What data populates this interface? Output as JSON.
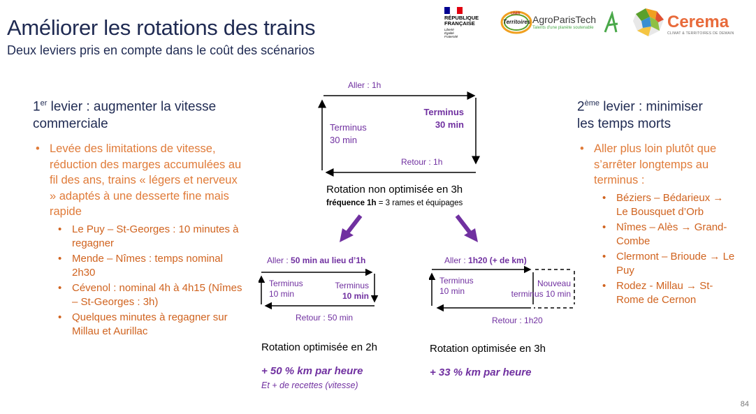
{
  "title": "Améliorer les rotations des trains",
  "subtitle": "Deux leviers pris en compte dans le coût des scénarios",
  "logos": {
    "rf_line1": "RÉPUBLIQUE",
    "rf_line2": "FRANÇAISE",
    "rf_motto1": "Liberté",
    "rf_motto2": "Égalité",
    "rf_motto3": "Fraternité",
    "umr_top": "UMR",
    "umr_name": "Territoires",
    "agro_name": "AgroParisTech",
    "agro_tagline": "Talents d'une planète soutenable",
    "cerema_name": "Cerema",
    "cerema_tagline": "CLIMAT & TERRITOIRES DE DEMAIN"
  },
  "lever1": {
    "head_num": "1",
    "head_sup": "er",
    "head_rest": " levier : augmenter la vitesse",
    "head_line2": "commerciale",
    "bullet": "Levée des limitations de vitesse, réduction des marges accumulées au fil des ans, trains « légers et nerveux » adaptés à une desserte fine mais rapide",
    "items": [
      "Le Puy – St-Georges : 10 minutes à regagner",
      "Mende – Nîmes : temps nominal 2h30",
      "Cévenol : nominal 4h à 4h15 (Nîmes – St-Georges : 3h)",
      "Quelques minutes à regagner sur Millau et Aurillac"
    ]
  },
  "lever2": {
    "head_num": "2",
    "head_sup": "ème",
    "head_rest": " levier : minimiser",
    "head_line2": "les temps morts",
    "bullet": "Aller plus loin plutôt que s’arrêter longtemps au terminus :",
    "items": [
      "Béziers – Bédarieux → Le Bousquet d’Orb",
      "Nîmes – Alès → Grand-Combe",
      "Clermont – Brioude → Le Puy",
      "Rodez - Millau → St-Rome de Cernon"
    ]
  },
  "diagram_top": {
    "aller": "Aller : 1h",
    "retour": "Retour : 1h",
    "term_left_1": "Terminus",
    "term_left_2": "30 min",
    "term_right_1": "Terminus",
    "term_right_2": "30 min",
    "rotation": "Rotation non optimisée en 3h",
    "freq_bold": "fréquence 1h",
    "freq_rest": " = 3 rames et équipages"
  },
  "diagram_left": {
    "aller_prefix": "Aller : ",
    "aller_bold": "50 min au lieu d’1h",
    "retour": "Retour : 50 min",
    "term_left_1": "Terminus",
    "term_left_2": "10 min",
    "term_right_1": "Terminus",
    "term_right_2": "10 min",
    "rotation": "Rotation optimisée en 2h",
    "gain": "+ 50 % km par heure",
    "gain_sub": "Et + de recettes (vitesse)"
  },
  "diagram_right": {
    "aller_prefix": "Aller : ",
    "aller_bold": "1h20 (+ de km)",
    "retour": "Retour : 1h20",
    "term_left_1": "Terminus",
    "term_left_2": "10 min",
    "term_right_1": "Nouveau",
    "term_right_2": "terminus 10 min",
    "rotation": "Rotation optimisée en 3h",
    "gain": "+ 33 % km par heure"
  },
  "page_number": "84",
  "colors": {
    "title": "#1f2a52",
    "orange": "#e07b39",
    "purple": "#7030a0"
  }
}
